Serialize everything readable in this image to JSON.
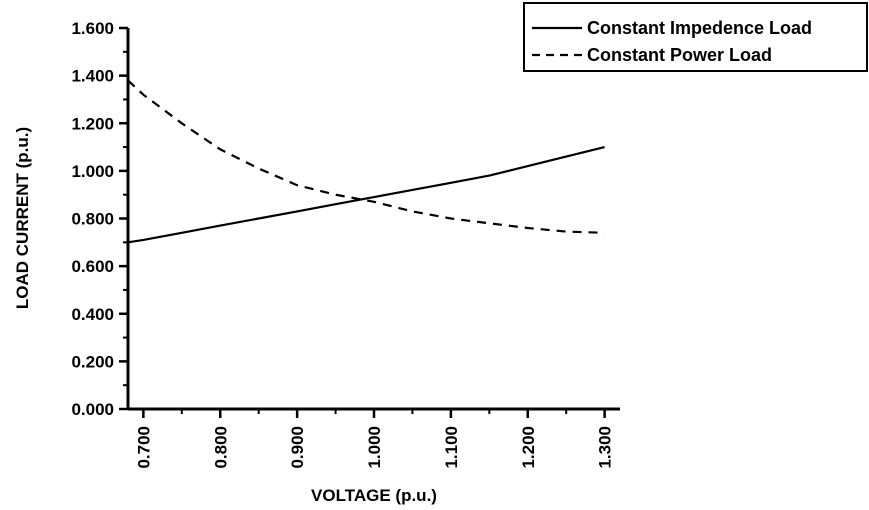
{
  "chart_data": {
    "type": "line",
    "title": "",
    "xlabel": "VOLTAGE (p.u.)",
    "ylabel": "LOAD CURRENT (p.u.)",
    "xlim": [
      0.68,
      1.32
    ],
    "ylim": [
      0,
      1.6
    ],
    "x_ticks": [
      "0.700",
      "0.800",
      "0.900",
      "1.000",
      "1.100",
      "1.200",
      "1.300"
    ],
    "y_ticks": [
      "0.000",
      "0.200",
      "0.400",
      "0.600",
      "0.800",
      "1.000",
      "1.200",
      "1.400",
      "1.600"
    ],
    "grid": false,
    "legend_position": "top-right",
    "x": [
      0.68,
      0.7,
      0.75,
      0.8,
      0.85,
      0.9,
      0.95,
      1.0,
      1.05,
      1.1,
      1.15,
      1.2,
      1.25,
      1.3
    ],
    "series": [
      {
        "name": "Constant Impedence Load",
        "style": "solid",
        "color": "#000000",
        "values": [
          0.7,
          0.71,
          0.74,
          0.77,
          0.8,
          0.83,
          0.86,
          0.89,
          0.92,
          0.95,
          0.98,
          1.02,
          1.06,
          1.1
        ]
      },
      {
        "name": "Constant Power Load",
        "style": "dashed",
        "color": "#000000",
        "values": [
          1.38,
          1.32,
          1.2,
          1.09,
          1.01,
          0.94,
          0.9,
          0.87,
          0.83,
          0.8,
          0.78,
          0.76,
          0.745,
          0.74
        ]
      }
    ]
  }
}
